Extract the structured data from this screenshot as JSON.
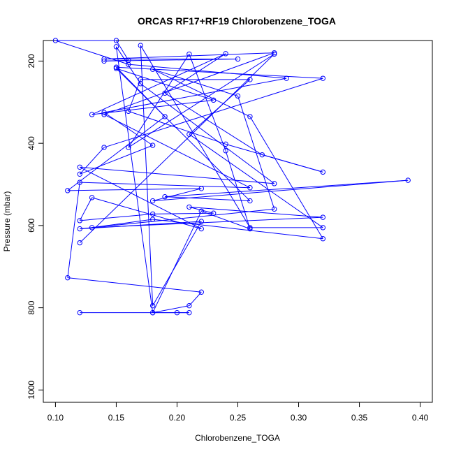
{
  "chart_data": {
    "type": "line",
    "title": "ORCAS RF17+RF19 Chlorobenzene_TOGA",
    "xlabel": "Chlorobenzene_TOGA",
    "ylabel": "Pressure (mbar)",
    "xlim": [
      0.09,
      0.41
    ],
    "ylim": [
      1030,
      150
    ],
    "y_reversed": true,
    "xticks": [
      0.1,
      0.15,
      0.2,
      0.25,
      0.3,
      0.35,
      0.4
    ],
    "xtick_labels": [
      "0.10",
      "0.15",
      "0.20",
      "0.25",
      "0.30",
      "0.35",
      "0.40"
    ],
    "yticks": [
      200,
      400,
      600,
      800,
      1000
    ],
    "ytick_labels": [
      "200",
      "400",
      "600",
      "800",
      "1000"
    ],
    "grid": false,
    "legend": "none",
    "color": "#0000ff",
    "marker": "open-circle",
    "series": [
      {
        "points": [
          [
            0.12,
            812
          ],
          [
            0.2,
            812
          ],
          [
            0.21,
            812
          ],
          [
            0.18,
            812
          ],
          [
            0.21,
            795
          ],
          [
            0.22,
            762
          ],
          [
            0.11,
            727
          ],
          [
            0.12,
            495
          ],
          [
            0.26,
            508
          ],
          [
            0.14,
            330
          ],
          [
            0.28,
            180
          ],
          [
            0.14,
            195
          ],
          [
            0.25,
            195
          ],
          [
            0.14,
            200
          ],
          [
            0.16,
            198
          ],
          [
            0.15,
            150
          ],
          [
            0.1,
            150
          ],
          [
            0.16,
            208
          ],
          [
            0.29,
            242
          ],
          [
            0.14,
            325
          ],
          [
            0.18,
            405
          ],
          [
            0.12,
            475
          ],
          [
            0.14,
            410
          ],
          [
            0.32,
            242
          ],
          [
            0.15,
            215
          ],
          [
            0.19,
            335
          ],
          [
            0.11,
            515
          ],
          [
            0.22,
            510
          ],
          [
            0.18,
            540
          ],
          [
            0.39,
            490
          ],
          [
            0.19,
            530
          ],
          [
            0.26,
            540
          ],
          [
            0.15,
            218
          ],
          [
            0.23,
            295
          ],
          [
            0.13,
            330
          ],
          [
            0.24,
            182
          ],
          [
            0.19,
            278
          ],
          [
            0.27,
            428
          ],
          [
            0.32,
            470
          ],
          [
            0.24,
            402
          ],
          [
            0.16,
            322
          ],
          [
            0.17,
            245
          ],
          [
            0.26,
            245
          ],
          [
            0.21,
            378
          ],
          [
            0.32,
            605
          ],
          [
            0.26,
            605
          ],
          [
            0.17,
            162
          ],
          [
            0.18,
            795
          ],
          [
            0.22,
            590
          ],
          [
            0.12,
            608
          ],
          [
            0.28,
            560
          ],
          [
            0.25,
            285
          ],
          [
            0.18,
            220
          ],
          [
            0.26,
            335
          ],
          [
            0.32,
            632
          ],
          [
            0.18,
            585
          ],
          [
            0.13,
            605
          ],
          [
            0.32,
            580
          ],
          [
            0.21,
            555
          ],
          [
            0.23,
            570
          ],
          [
            0.18,
            572
          ],
          [
            0.12,
            588
          ],
          [
            0.13,
            532
          ],
          [
            0.22,
            608
          ],
          [
            0.12,
            458
          ],
          [
            0.28,
            498
          ],
          [
            0.17,
            255
          ],
          [
            0.15,
            165
          ],
          [
            0.18,
            812
          ],
          [
            0.22,
            565
          ],
          [
            0.26,
            608
          ],
          [
            0.24,
            418
          ],
          [
            0.21,
            183
          ],
          [
            0.16,
            410
          ],
          [
            0.28,
            183
          ],
          [
            0.12,
            642
          ]
        ]
      }
    ]
  }
}
